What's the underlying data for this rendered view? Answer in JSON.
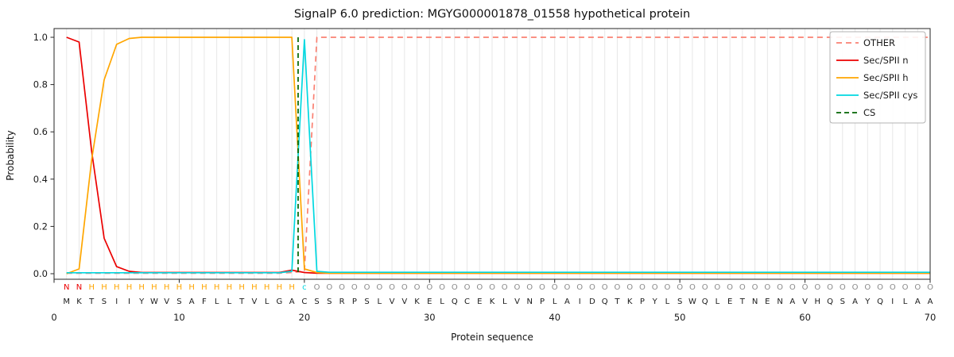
{
  "chart_data": {
    "type": "line",
    "title": "SignalP 6.0 prediction: MGYG000001878_01558 hypothetical protein",
    "xlabel": "Protein sequence",
    "ylabel": "Probability",
    "xlim": [
      0,
      70
    ],
    "ylim": [
      0.0,
      1.0
    ],
    "x_ticks": [
      0,
      10,
      20,
      30,
      40,
      50,
      60,
      70
    ],
    "y_ticks": [
      0.0,
      0.2,
      0.4,
      0.6,
      0.8,
      1.0
    ],
    "grid": "vertical-per-residue",
    "gridline_color": "#e7e7e7",
    "legend_position": "upper right",
    "x_positions": "1..70",
    "series": [
      {
        "name": "OTHER",
        "color": "#fa8072",
        "dash": "7 5",
        "values": [
          0.002,
          0.002,
          0.002,
          0.002,
          0.002,
          0.002,
          0.002,
          0.002,
          0.002,
          0.002,
          0.002,
          0.002,
          0.002,
          0.002,
          0.002,
          0.002,
          0.002,
          0.002,
          0.005,
          0.01,
          1.0,
          1.0,
          1.0,
          1.0,
          1.0,
          1.0,
          1.0,
          1.0,
          1.0,
          1.0,
          1.0,
          1.0,
          1.0,
          1.0,
          1.0,
          1.0,
          1.0,
          1.0,
          1.0,
          1.0,
          1.0,
          1.0,
          1.0,
          1.0,
          1.0,
          1.0,
          1.0,
          1.0,
          1.0,
          1.0,
          1.0,
          1.0,
          1.0,
          1.0,
          1.0,
          1.0,
          1.0,
          1.0,
          1.0,
          1.0,
          1.0,
          1.0,
          1.0,
          1.0,
          1.0,
          1.0,
          1.0,
          1.0,
          1.0,
          1.0
        ]
      },
      {
        "name": "Sec/SPII n",
        "color": "#eb0000",
        "dash": null,
        "values": [
          1.0,
          0.98,
          0.52,
          0.15,
          0.03,
          0.01,
          0.005,
          0.005,
          0.005,
          0.005,
          0.005,
          0.005,
          0.005,
          0.005,
          0.005,
          0.005,
          0.005,
          0.005,
          0.015,
          0.005,
          0.002,
          0.002,
          0.002,
          0.002,
          0.002,
          0.002,
          0.002,
          0.002,
          0.002,
          0.002,
          0.002,
          0.002,
          0.002,
          0.002,
          0.002,
          0.002,
          0.002,
          0.002,
          0.002,
          0.002,
          0.002,
          0.002,
          0.002,
          0.002,
          0.002,
          0.002,
          0.002,
          0.002,
          0.002,
          0.002,
          0.002,
          0.002,
          0.002,
          0.002,
          0.002,
          0.002,
          0.002,
          0.002,
          0.002,
          0.002,
          0.002,
          0.002,
          0.002,
          0.002,
          0.002,
          0.002,
          0.002,
          0.002,
          0.002,
          0.002
        ]
      },
      {
        "name": "Sec/SPII h",
        "color": "#ffa600",
        "dash": null,
        "values": [
          0.0,
          0.02,
          0.48,
          0.82,
          0.97,
          0.995,
          1.0,
          1.0,
          1.0,
          1.0,
          1.0,
          1.0,
          1.0,
          1.0,
          1.0,
          1.0,
          1.0,
          1.0,
          1.0,
          0.02,
          0.005,
          0.002,
          0.002,
          0.002,
          0.002,
          0.002,
          0.002,
          0.002,
          0.002,
          0.002,
          0.002,
          0.002,
          0.002,
          0.002,
          0.002,
          0.002,
          0.002,
          0.002,
          0.002,
          0.002,
          0.002,
          0.002,
          0.002,
          0.002,
          0.002,
          0.002,
          0.002,
          0.002,
          0.002,
          0.002,
          0.002,
          0.002,
          0.002,
          0.002,
          0.002,
          0.002,
          0.002,
          0.002,
          0.002,
          0.002,
          0.002,
          0.002,
          0.002,
          0.002,
          0.002,
          0.002,
          0.002,
          0.002,
          0.002,
          0.002
        ]
      },
      {
        "name": "Sec/SPII cys",
        "color": "#00d8e0",
        "dash": null,
        "values": [
          0.004,
          0.004,
          0.004,
          0.004,
          0.004,
          0.004,
          0.004,
          0.004,
          0.004,
          0.004,
          0.004,
          0.004,
          0.004,
          0.004,
          0.004,
          0.004,
          0.004,
          0.004,
          0.01,
          0.99,
          0.01,
          0.006,
          0.006,
          0.006,
          0.006,
          0.006,
          0.006,
          0.006,
          0.006,
          0.006,
          0.006,
          0.006,
          0.006,
          0.006,
          0.006,
          0.006,
          0.006,
          0.006,
          0.006,
          0.006,
          0.006,
          0.006,
          0.006,
          0.006,
          0.006,
          0.006,
          0.006,
          0.006,
          0.006,
          0.006,
          0.006,
          0.006,
          0.006,
          0.006,
          0.006,
          0.006,
          0.006,
          0.006,
          0.006,
          0.006,
          0.006,
          0.006,
          0.006,
          0.006,
          0.006,
          0.006,
          0.006,
          0.006,
          0.006,
          0.006
        ]
      }
    ],
    "cs_marker": {
      "name": "CS",
      "color": "#006400",
      "dash": "6 4",
      "position": 19.5
    },
    "sequence": "MKTSIIYWVSAFLLTVLGACSSRPSLVVKELQCEKLVNPLAIDQTKPYLSWQLETNENAVHQSAYQILAA",
    "annotation": "NNHHHHHHHHHHHHHHHHHcOOOOOOOOOOOOOOOOOOOOOOOOOOOOOOOOOOOOOOOOOOOOOOOOOO",
    "annotation_colors": {
      "N": "#eb0000",
      "H": "#ffa600",
      "c": "#00d8e0",
      "O": "#8a8a8a"
    },
    "sequence_color": "#1a1a1a"
  }
}
